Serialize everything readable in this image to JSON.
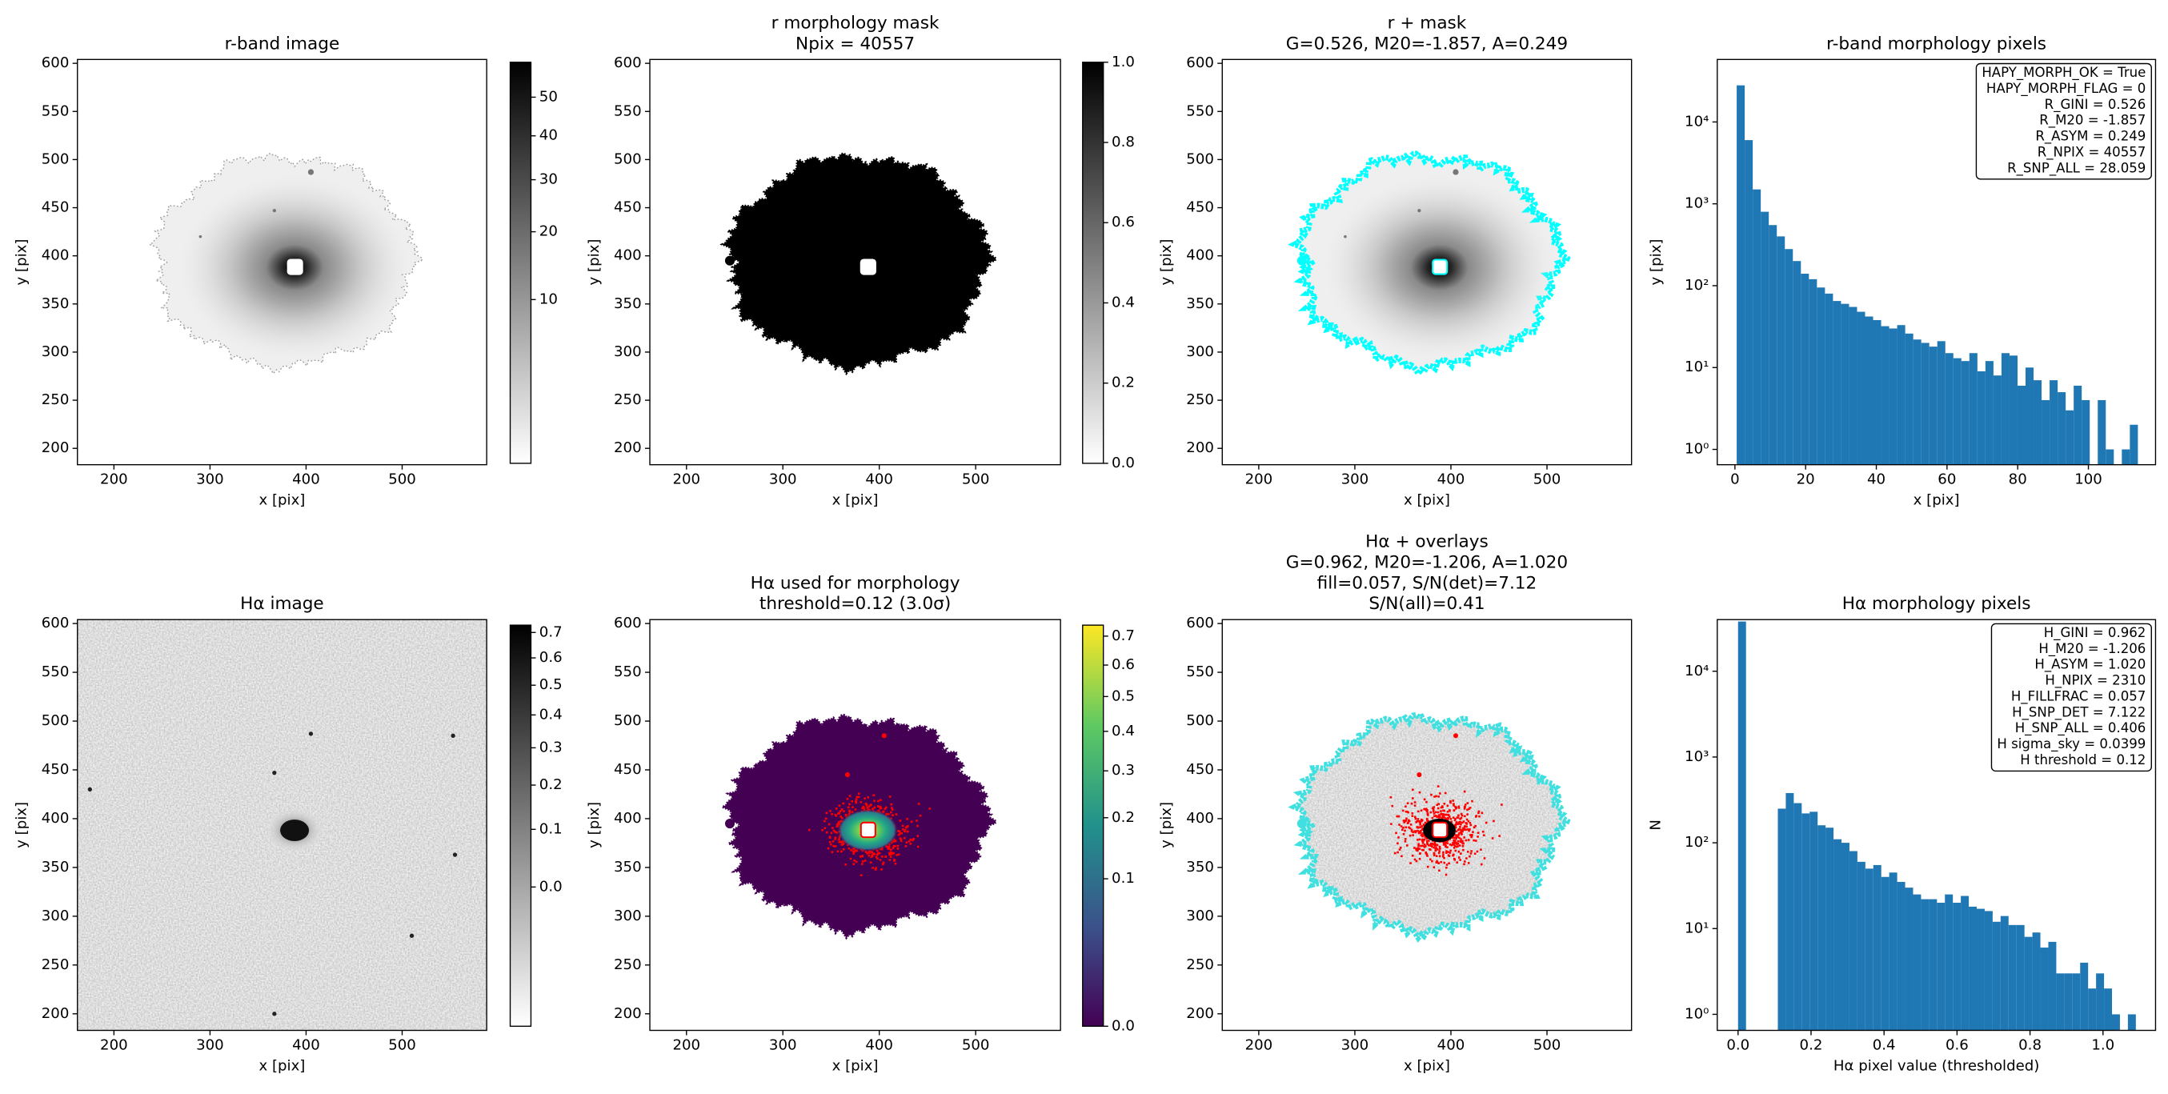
{
  "chart_data": [
    {
      "type": "image",
      "title": "r-band image",
      "xlabel": "x [pix]",
      "ylabel": "y [pix]",
      "xlim": [
        162,
        588
      ],
      "ylim": [
        183,
        604
      ],
      "xticks": [
        200,
        300,
        400,
        500
      ],
      "yticks": [
        200,
        250,
        300,
        350,
        400,
        450,
        500,
        550,
        600
      ],
      "colorbar": {
        "cmap": "gray_r",
        "scale": "sqrt",
        "clim": [
          0,
          60
        ],
        "ticks": [
          10,
          20,
          30,
          40,
          50
        ]
      }
    },
    {
      "type": "image",
      "title": [
        "r morphology mask",
        "Npix = 40557"
      ],
      "xlabel": "x [pix]",
      "ylabel": "y [pix]",
      "xlim": [
        162,
        588
      ],
      "ylim": [
        183,
        604
      ],
      "xticks": [
        200,
        300,
        400,
        500
      ],
      "yticks": [
        200,
        250,
        300,
        350,
        400,
        450,
        500,
        550,
        600
      ],
      "colorbar": {
        "cmap": "gray_r",
        "scale": "linear",
        "clim": [
          0,
          1
        ],
        "ticks": [
          {
            "value": 0,
            "label": "0.0"
          },
          0.2,
          0.4,
          0.6,
          0.8,
          {
            "value": 1,
            "label": "1.0"
          }
        ]
      }
    },
    {
      "type": "image",
      "title": [
        "r + mask",
        "G=0.526, M20=-1.857, A=0.249"
      ],
      "xlabel": "x [pix]",
      "ylabel": "y [pix]",
      "xlim": [
        162,
        588
      ],
      "ylim": [
        183,
        604
      ],
      "xticks": [
        200,
        300,
        400,
        500
      ],
      "yticks": [
        200,
        250,
        300,
        350,
        400,
        450,
        500,
        550,
        600
      ]
    },
    {
      "type": "histogram",
      "title": "r-band morphology pixels",
      "xlabel": "x [pix]",
      "ylabel": "y [pix]",
      "color": "#1f77b4",
      "yscale": "log",
      "xlim": [
        -5,
        119
      ],
      "ylim": [
        0.65,
        58000
      ],
      "xticks": [
        0,
        20,
        40,
        60,
        80,
        100
      ],
      "yticks": [
        {
          "value": 1,
          "label": "10⁰"
        },
        {
          "value": 10,
          "label": "10¹"
        },
        {
          "value": 100,
          "label": "10²"
        },
        {
          "value": 1000,
          "label": "10³"
        },
        {
          "value": 10000,
          "label": "10⁴"
        }
      ],
      "bins": [
        0.5,
        2.77,
        5.04,
        7.31,
        9.58,
        11.85,
        14.12,
        16.39,
        18.66,
        20.93,
        23.2,
        25.47,
        27.74,
        30.01,
        32.28,
        34.55,
        36.82,
        39.09,
        41.36,
        43.63,
        45.9,
        48.17,
        50.44,
        52.71,
        54.98,
        57.25,
        59.52,
        61.79,
        64.06,
        66.33,
        68.6,
        70.87,
        73.14,
        75.41,
        77.68,
        79.95,
        82.22,
        84.49,
        86.76,
        89.03,
        91.3,
        93.57,
        95.84,
        98.11,
        100.38,
        102.65,
        104.92,
        107.19,
        109.46,
        111.73,
        114.0
      ],
      "values": [
        28000,
        6000,
        1500,
        800,
        550,
        400,
        280,
        200,
        140,
        120,
        95,
        80,
        65,
        60,
        55,
        48,
        42,
        38,
        32,
        30,
        33,
        26,
        22,
        20,
        18,
        21,
        15,
        13,
        12,
        15,
        9,
        12,
        8,
        15,
        14,
        6,
        10,
        7,
        4,
        7,
        5,
        3,
        6,
        4,
        0,
        4,
        1,
        0,
        1,
        2
      ],
      "annotation": [
        "HAPY_MORPH_OK = True",
        "HAPY_MORPH_FLAG = 0",
        "R_GINI = 0.526",
        "R_M20 = -1.857",
        "R_ASYM = 0.249",
        "R_NPIX = 40557",
        "R_SNP_ALL = 28.059"
      ]
    },
    {
      "type": "image",
      "title": "Hα image",
      "xlabel": "x [pix]",
      "ylabel": "y [pix]",
      "xlim": [
        162,
        588
      ],
      "ylim": [
        183,
        604
      ],
      "xticks": [
        200,
        300,
        400,
        500
      ],
      "yticks": [
        200,
        250,
        300,
        350,
        400,
        450,
        500,
        550,
        600
      ],
      "colorbar": {
        "cmap": "gray_r",
        "scale": "sqrt",
        "clim": [
          -0.1,
          0.73
        ],
        "ticks": [
          {
            "value": 0,
            "label": "0.0"
          },
          0.1,
          0.2,
          0.3,
          0.4,
          0.5,
          0.6,
          0.7
        ]
      }
    },
    {
      "type": "image",
      "title": [
        "Hα used for morphology",
        "threshold=0.12 (3.0σ)"
      ],
      "xlabel": "x [pix]",
      "ylabel": "y [pix]",
      "xlim": [
        162,
        588
      ],
      "ylim": [
        183,
        604
      ],
      "xticks": [
        200,
        300,
        400,
        500
      ],
      "yticks": [
        200,
        250,
        300,
        350,
        400,
        450,
        500,
        550,
        600
      ],
      "colorbar": {
        "cmap": "viridis",
        "scale": "sqrt",
        "clim": [
          0,
          0.74
        ],
        "ticks": [
          {
            "value": 0,
            "label": "0.0"
          },
          0.1,
          0.2,
          0.3,
          0.4,
          0.5,
          0.6,
          0.7
        ]
      }
    },
    {
      "type": "image",
      "title": [
        "Hα + overlays",
        "G=0.962, M20=-1.206, A=1.020",
        "fill=0.057, S/N(det)=7.12",
        "S/N(all)=0.41"
      ],
      "xlabel": "x [pix]",
      "ylabel": "y [pix]",
      "xlim": [
        162,
        588
      ],
      "ylim": [
        183,
        604
      ],
      "xticks": [
        200,
        300,
        400,
        500
      ],
      "yticks": [
        200,
        250,
        300,
        350,
        400,
        450,
        500,
        550,
        600
      ]
    },
    {
      "type": "histogram",
      "title": "Hα morphology pixels",
      "xlabel": "Hα pixel value (thresholded)",
      "ylabel": "N",
      "color": "#1f77b4",
      "yscale": "log",
      "xlim": [
        -0.057,
        1.144
      ],
      "ylim": [
        0.65,
        40000
      ],
      "xticks": [
        {
          "value": 0,
          "label": "0.0"
        },
        0.2,
        0.4,
        0.6,
        0.8,
        {
          "value": 1,
          "label": "1.0"
        }
      ],
      "yticks": [
        {
          "value": 1,
          "label": "10⁰"
        },
        {
          "value": 10,
          "label": "10¹"
        },
        {
          "value": 100,
          "label": "10²"
        },
        {
          "value": 1000,
          "label": "10³"
        },
        {
          "value": 10000,
          "label": "10⁴"
        }
      ],
      "bins": [
        0,
        0.0218,
        0.0436,
        0.0654,
        0.0872,
        0.109,
        0.1308,
        0.1526,
        0.1744,
        0.1962,
        0.218,
        0.2398,
        0.2616,
        0.2834,
        0.3052,
        0.327,
        0.3488,
        0.3706,
        0.3924,
        0.4142,
        0.436,
        0.4578,
        0.4796,
        0.5014,
        0.5232,
        0.545,
        0.5668,
        0.5886,
        0.6104,
        0.6322,
        0.654,
        0.6758,
        0.6976,
        0.7194,
        0.7412,
        0.763,
        0.7848,
        0.8066,
        0.8284,
        0.8502,
        0.872,
        0.8938,
        0.9156,
        0.9374,
        0.9592,
        0.981,
        1.0028,
        1.0246,
        1.0464,
        1.0682,
        1.09
      ],
      "values": [
        38000,
        0,
        0,
        0,
        0,
        250,
        380,
        290,
        220,
        230,
        160,
        150,
        110,
        100,
        80,
        60,
        50,
        55,
        40,
        45,
        35,
        30,
        25,
        22,
        22,
        20,
        25,
        20,
        24,
        18,
        17,
        16,
        12,
        14,
        11,
        11,
        8,
        9,
        6,
        7,
        3,
        3,
        3,
        4,
        2,
        3,
        2,
        1,
        0,
        1
      ],
      "annotation": [
        "H_GINI = 0.962",
        "H_M20 = -1.206",
        "H_ASYM = 1.020",
        "H_NPIX = 2310",
        "H_FILLFRAC = 0.057",
        "H_SNP_DET = 7.122",
        "H_SNP_ALL = 0.406",
        "H sigma_sky = 0.0399",
        "H threshold = 0.12"
      ]
    }
  ]
}
